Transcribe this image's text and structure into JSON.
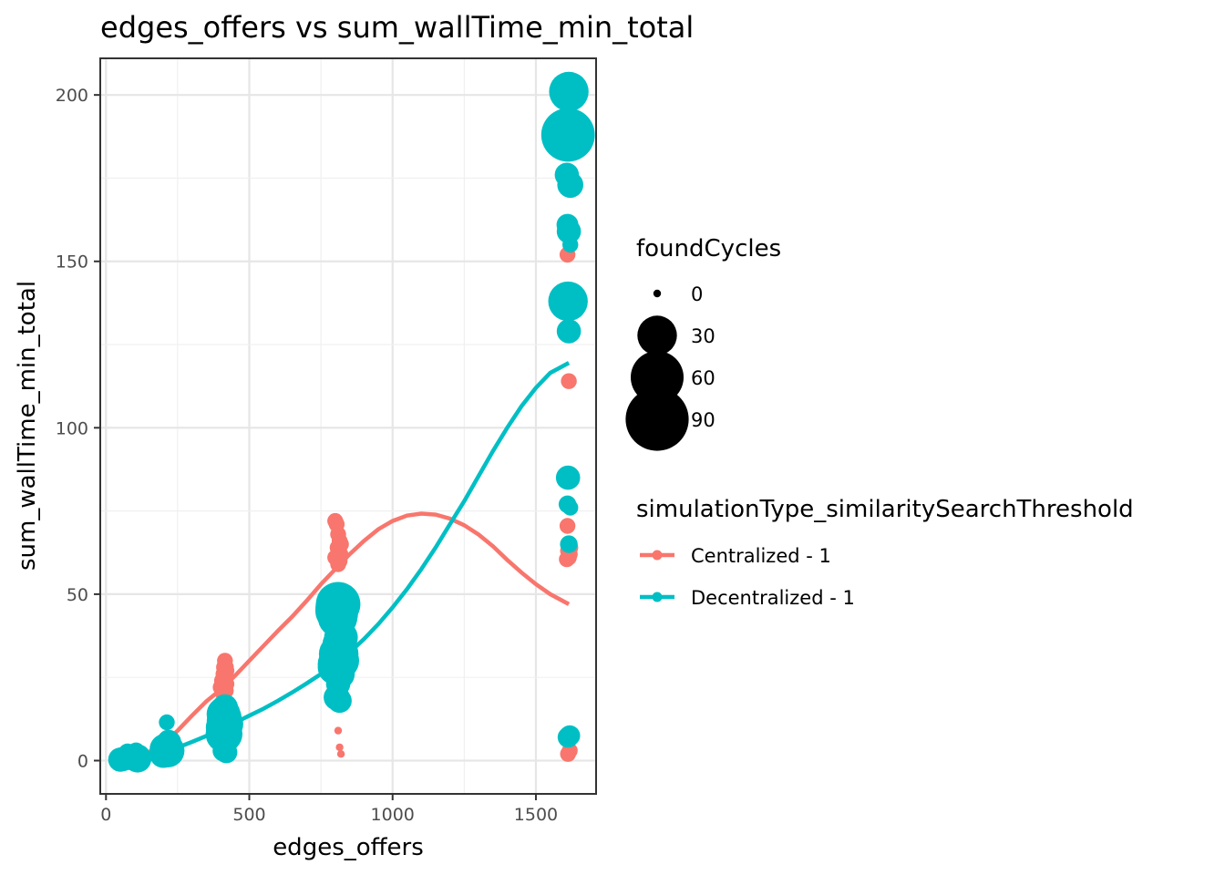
{
  "chart_data": {
    "type": "scatter",
    "title": "edges_offers  vs  sum_wallTime_min_total",
    "xlabel": "edges_offers",
    "ylabel": "sum_wallTime_min_total",
    "xlim": [
      -20,
      1710
    ],
    "ylim": [
      -10,
      211
    ],
    "xticks": [
      0,
      500,
      1000,
      1500
    ],
    "yticks": [
      0,
      50,
      100,
      150,
      200
    ],
    "grid": true,
    "size_legend": {
      "title": "foundCycles",
      "values": [
        0,
        30,
        60,
        90
      ],
      "labels": [
        "0",
        "30",
        "60",
        "90"
      ]
    },
    "color_legend": {
      "title": "simulationType_similaritySearchThreshold",
      "placement": "right"
    },
    "series": [
      {
        "name": "Centralized - 1",
        "color": "#F8766D",
        "points": [
          [
            50,
            0.5,
            0
          ],
          [
            60,
            0.8,
            0
          ],
          [
            70,
            1.2,
            0
          ],
          [
            100,
            0.6,
            0
          ],
          [
            110,
            1.0,
            0
          ],
          [
            200,
            2.5,
            0
          ],
          [
            210,
            4.0,
            0
          ],
          [
            215,
            3.0,
            0
          ],
          [
            220,
            5.0,
            0
          ],
          [
            400,
            22,
            2
          ],
          [
            405,
            24,
            2
          ],
          [
            410,
            26,
            2
          ],
          [
            410,
            20,
            2
          ],
          [
            415,
            28,
            3
          ],
          [
            415,
            30,
            2
          ],
          [
            420,
            27,
            2
          ],
          [
            420,
            23,
            2
          ],
          [
            410,
            25,
            2
          ],
          [
            418,
            21,
            2
          ],
          [
            800,
            72,
            2
          ],
          [
            805,
            71,
            2
          ],
          [
            810,
            68,
            2
          ],
          [
            815,
            66,
            2
          ],
          [
            808,
            64,
            2
          ],
          [
            812,
            63,
            2
          ],
          [
            818,
            62,
            2
          ],
          [
            800,
            61,
            2
          ],
          [
            815,
            60,
            2
          ],
          [
            810,
            59,
            2
          ],
          [
            820,
            65,
            2
          ],
          [
            810,
            9,
            0
          ],
          [
            820,
            2,
            0
          ],
          [
            815,
            4,
            0
          ],
          [
            1610,
            152,
            2
          ],
          [
            1615,
            114,
            2
          ],
          [
            1610,
            70.5,
            2
          ],
          [
            1612,
            63,
            2
          ],
          [
            1618,
            62,
            2
          ],
          [
            1615,
            61,
            2
          ],
          [
            1608,
            60.5,
            2
          ],
          [
            1620,
            64,
            2
          ],
          [
            1612,
            2,
            2
          ],
          [
            1618,
            3,
            2
          ],
          [
            1615,
            5,
            0
          ]
        ],
        "smooth": [
          [
            50,
            0
          ],
          [
            100,
            1.0
          ],
          [
            150,
            2.6
          ],
          [
            200,
            5.0
          ],
          [
            250,
            9.0
          ],
          [
            300,
            13.5
          ],
          [
            350,
            17.8
          ],
          [
            400,
            21.3
          ],
          [
            450,
            25.5
          ],
          [
            500,
            30.0
          ],
          [
            550,
            34.5
          ],
          [
            600,
            39.0
          ],
          [
            650,
            43.3
          ],
          [
            700,
            48.0
          ],
          [
            750,
            53.0
          ],
          [
            800,
            57.5
          ],
          [
            850,
            62.0
          ],
          [
            900,
            66.0
          ],
          [
            950,
            69.5
          ],
          [
            1000,
            72.0
          ],
          [
            1050,
            73.6
          ],
          [
            1100,
            74.2
          ],
          [
            1150,
            73.9
          ],
          [
            1200,
            72.7
          ],
          [
            1250,
            70.7
          ],
          [
            1300,
            67.9
          ],
          [
            1350,
            64.4
          ],
          [
            1400,
            60.3
          ],
          [
            1450,
            56.5
          ],
          [
            1500,
            53.0
          ],
          [
            1550,
            50.0
          ],
          [
            1615,
            47.0
          ]
        ]
      },
      {
        "name": "Decentralized - 1",
        "color": "#00BFC4",
        "points": [
          [
            50,
            0.3,
            8
          ],
          [
            60,
            0.5,
            8
          ],
          [
            70,
            1.0,
            6
          ],
          [
            75,
            2.5,
            3
          ],
          [
            90,
            0.2,
            5
          ],
          [
            100,
            1.2,
            10
          ],
          [
            105,
            2.8,
            3
          ],
          [
            110,
            0.6,
            12
          ],
          [
            115,
            1.5,
            6
          ],
          [
            200,
            2.0,
            12
          ],
          [
            205,
            3.5,
            15
          ],
          [
            210,
            4.5,
            10
          ],
          [
            215,
            3.0,
            20
          ],
          [
            220,
            5.5,
            8
          ],
          [
            212,
            11.5,
            2
          ],
          [
            218,
            6.0,
            6
          ],
          [
            225,
            2.5,
            10
          ],
          [
            400,
            12,
            12
          ],
          [
            405,
            10,
            18
          ],
          [
            410,
            14,
            20
          ],
          [
            412,
            8,
            25
          ],
          [
            415,
            16,
            10
          ],
          [
            418,
            11,
            22
          ],
          [
            420,
            13,
            15
          ],
          [
            410,
            3,
            6
          ],
          [
            420,
            2.5,
            6
          ],
          [
            405,
            6,
            8
          ],
          [
            415,
            9,
            16
          ],
          [
            408,
            15,
            12
          ],
          [
            800,
            46,
            30
          ],
          [
            805,
            45,
            36
          ],
          [
            810,
            47,
            40
          ],
          [
            815,
            44,
            25
          ],
          [
            808,
            43,
            30
          ],
          [
            812,
            32,
            30
          ],
          [
            818,
            30,
            26
          ],
          [
            806,
            29,
            28
          ],
          [
            814,
            35,
            20
          ],
          [
            820,
            37,
            20
          ],
          [
            800,
            28,
            22
          ],
          [
            815,
            26,
            15
          ],
          [
            810,
            23,
            8
          ],
          [
            805,
            19,
            10
          ],
          [
            815,
            18,
            8
          ],
          [
            812,
            27,
            18
          ],
          [
            1615,
            201,
            30
          ],
          [
            1612,
            188,
            62
          ],
          [
            1618,
            193,
            5
          ],
          [
            1608,
            176,
            8
          ],
          [
            1620,
            173,
            10
          ],
          [
            1610,
            161,
            6
          ],
          [
            1615,
            159,
            8
          ],
          [
            1620,
            155,
            2
          ],
          [
            1612,
            138,
            30
          ],
          [
            1615,
            129,
            8
          ],
          [
            1612,
            85,
            8
          ],
          [
            1610,
            77,
            3
          ],
          [
            1620,
            76,
            2
          ],
          [
            1615,
            65,
            3
          ],
          [
            1612,
            7,
            5
          ],
          [
            1618,
            7.5,
            5
          ]
        ],
        "smooth": [
          [
            50,
            0
          ],
          [
            100,
            0.4
          ],
          [
            150,
            1.2
          ],
          [
            200,
            2.4
          ],
          [
            250,
            3.9
          ],
          [
            300,
            5.6
          ],
          [
            350,
            7.4
          ],
          [
            400,
            9.3
          ],
          [
            450,
            11.4
          ],
          [
            500,
            13.5
          ],
          [
            550,
            15.6
          ],
          [
            600,
            18.0
          ],
          [
            650,
            20.5
          ],
          [
            700,
            23.2
          ],
          [
            750,
            26.0
          ],
          [
            800,
            29.0
          ],
          [
            850,
            32.5
          ],
          [
            900,
            36.5
          ],
          [
            950,
            41.0
          ],
          [
            1000,
            46.0
          ],
          [
            1050,
            51.5
          ],
          [
            1100,
            57.5
          ],
          [
            1150,
            64.0
          ],
          [
            1200,
            71.0
          ],
          [
            1250,
            78.0
          ],
          [
            1300,
            85.5
          ],
          [
            1350,
            93.0
          ],
          [
            1400,
            100.0
          ],
          [
            1450,
            106.5
          ],
          [
            1500,
            112.0
          ],
          [
            1550,
            116.5
          ],
          [
            1615,
            119.5
          ]
        ]
      }
    ]
  }
}
